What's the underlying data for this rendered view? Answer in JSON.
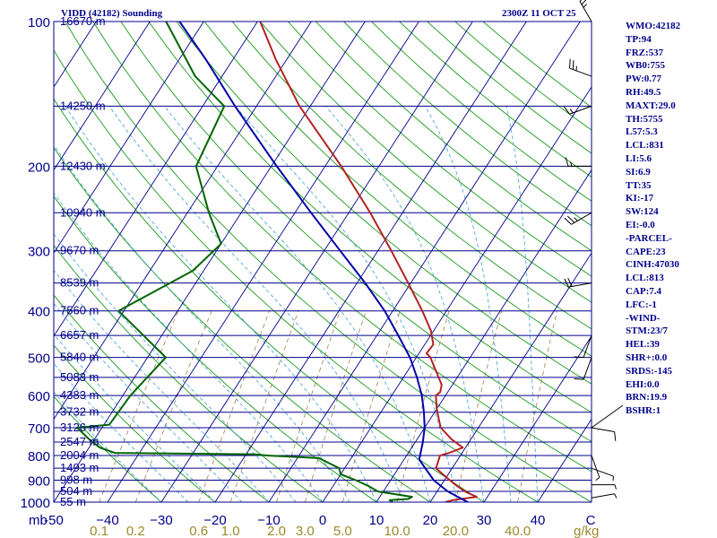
{
  "header": {
    "station": "VIDD (42182) Sounding",
    "datetime": "2300Z 11 OCT 25"
  },
  "sidebar": [
    "WMO:42182",
    "TP:94",
    "FRZ:537",
    "WB0:755",
    "PW:0.77",
    "RH:49.5",
    "MAXT:29.0",
    "TH:5755",
    "L57:5.3",
    "LCL:831",
    "LI:5.6",
    "SI:6.9",
    "TT:35",
    "KI:-17",
    "SW:124",
    "EI:-0.0",
    "-PARCEL-",
    "CAPE:23",
    "CINH:47030",
    "LCL:813",
    "CAP:7.4",
    "LFC:-1",
    "-WIND-",
    "STM:23/7",
    "HEL:39",
    "SHR+:0.0",
    "SRDS:-145",
    "EHI:0.0",
    "BRN:19.9",
    "BSHR:1"
  ],
  "colors": {
    "isobar": "#00008b",
    "isotherm": "#00008b",
    "dry_adiabat": "#1a9a1a",
    "moist_adiabat": "#3ca0d0",
    "mixing_ratio": "#a08050",
    "temperature": "#b22222",
    "dewpoint": "#006400",
    "parcel": "#0000aa",
    "text": "#00008b"
  },
  "chart_data": {
    "type": "line",
    "title": "VIDD (42182) Sounding",
    "subtitle": "2300Z 11 OCT 25",
    "xlabel": "°C",
    "ylabel": "mb",
    "xlim": [
      -50,
      50
    ],
    "ylim": [
      1000,
      100
    ],
    "pressure_ticks": [
      100,
      200,
      300,
      400,
      500,
      600,
      700,
      800,
      900,
      1000
    ],
    "pressure_tick_labels": [
      "100",
      "200",
      "300",
      "400",
      "500",
      "600",
      "700",
      "800",
      "900",
      "1000"
    ],
    "temp_ticks": [
      -50,
      -40,
      -30,
      -20,
      -10,
      0,
      10,
      20,
      30,
      40,
      50
    ],
    "temp_tick_labels": [
      "-50",
      "−40",
      "−30",
      "−20",
      "−10",
      "0",
      "10",
      "20",
      "30",
      "40",
      "C"
    ],
    "mb_label": "mb",
    "mixing_ratio_labels": [
      "0.1",
      "0.2",
      "0.6",
      "1.0",
      "2.0",
      "3.0",
      "5.0",
      "10.0",
      "20.0",
      "40.0"
    ],
    "mixing_ratio_values": [
      0.1,
      0.2,
      0.6,
      1.0,
      2.0,
      3.0,
      5.0,
      10.0,
      20.0,
      40.0
    ],
    "mixing_ratio_unit": "g/kg",
    "height_levels": [
      {
        "p": 100,
        "label": "16670 m"
      },
      {
        "p": 150,
        "label": "14250 m"
      },
      {
        "p": 200,
        "label": "12430 m"
      },
      {
        "p": 250,
        "label": "10940 m"
      },
      {
        "p": 300,
        "label": "9670 m"
      },
      {
        "p": 350,
        "label": "8539 m"
      },
      {
        "p": 400,
        "label": "7560 m"
      },
      {
        "p": 450,
        "label": "6657 m"
      },
      {
        "p": 500,
        "label": "5840 m"
      },
      {
        "p": 550,
        "label": "5083 m"
      },
      {
        "p": 600,
        "label": "4383 m"
      },
      {
        "p": 650,
        "label": "3732 m"
      },
      {
        "p": 700,
        "label": "3126 m"
      },
      {
        "p": 750,
        "label": "2547 m"
      },
      {
        "p": 800,
        "label": "2004 m"
      },
      {
        "p": 850,
        "label": "1493 m"
      },
      {
        "p": 900,
        "label": "998 m"
      },
      {
        "p": 950,
        "label": "504 m"
      },
      {
        "p": 1000,
        "label": "55 m"
      }
    ],
    "series": [
      {
        "name": "Temperature",
        "points": [
          [
            1000,
            22.8
          ],
          [
            990,
            24.0
          ],
          [
            975,
            28.0
          ],
          [
            962,
            26.5
          ],
          [
            950,
            25.2
          ],
          [
            925,
            23.0
          ],
          [
            900,
            21.0
          ],
          [
            875,
            19.0
          ],
          [
            850,
            17.0
          ],
          [
            800,
            16.2
          ],
          [
            790,
            17.6
          ],
          [
            770,
            19.5
          ],
          [
            740,
            16.4
          ],
          [
            700,
            13.0
          ],
          [
            680,
            12.0
          ],
          [
            640,
            10.0
          ],
          [
            600,
            8.2
          ],
          [
            590,
            8.6
          ],
          [
            570,
            8.0
          ],
          [
            500,
            2.6
          ],
          [
            490,
            1.4
          ],
          [
            470,
            1.6
          ],
          [
            440,
            -0.5
          ],
          [
            400,
            -4.5
          ],
          [
            350,
            -10.5
          ],
          [
            300,
            -17.5
          ],
          [
            250,
            -26.0
          ],
          [
            200,
            -37.0
          ],
          [
            150,
            -52.0
          ],
          [
            120,
            -62.0
          ],
          [
            100,
            -69.5
          ]
        ]
      },
      {
        "name": "Dewpoint",
        "points": [
          [
            1000,
            13.0
          ],
          [
            990,
            12.2
          ],
          [
            985,
            15.5
          ],
          [
            975,
            16.0
          ],
          [
            950,
            9.0
          ],
          [
            925,
            6.5
          ],
          [
            900,
            3.5
          ],
          [
            875,
            0.0
          ],
          [
            850,
            -1.0
          ],
          [
            810,
            -6.0
          ],
          [
            800,
            -15.6
          ],
          [
            795,
            -18.6
          ],
          [
            790,
            -44.6
          ],
          [
            770,
            -48.0
          ],
          [
            740,
            -51.0
          ],
          [
            700,
            -54.6
          ],
          [
            690,
            -49.0
          ],
          [
            600,
            -48.6
          ],
          [
            500,
            -46.6
          ],
          [
            400,
            -61.0
          ],
          [
            330,
            -52.0
          ],
          [
            290,
            -50.0
          ],
          [
            250,
            -56.0
          ],
          [
            200,
            -64.0
          ],
          [
            150,
            -66.0
          ],
          [
            130,
            -75.0
          ],
          [
            100,
            -87.0
          ]
        ]
      },
      {
        "name": "Parcel",
        "points": [
          [
            1000,
            27.0
          ],
          [
            975,
            24.5
          ],
          [
            950,
            22.0
          ],
          [
            925,
            20.0
          ],
          [
            900,
            18.0
          ],
          [
            850,
            15.0
          ],
          [
            815,
            12.8
          ],
          [
            800,
            12.5
          ],
          [
            750,
            11.4
          ],
          [
            700,
            10.0
          ],
          [
            650,
            8.0
          ],
          [
            600,
            5.6
          ],
          [
            550,
            2.5
          ],
          [
            500,
            -1.2
          ],
          [
            450,
            -6.0
          ],
          [
            400,
            -11.5
          ],
          [
            350,
            -18.5
          ],
          [
            300,
            -27.0
          ],
          [
            250,
            -37.0
          ],
          [
            200,
            -49.0
          ],
          [
            150,
            -64.0
          ],
          [
            120,
            -75.0
          ],
          [
            100,
            -84.5
          ]
        ]
      }
    ],
    "wind_barbs": [
      {
        "p": 100,
        "dir": 330,
        "speed": 25
      },
      {
        "p": 130,
        "dir": 290,
        "speed": 25
      },
      {
        "p": 150,
        "dir": 250,
        "speed": 15
      },
      {
        "p": 200,
        "dir": 270,
        "speed": 15
      },
      {
        "p": 250,
        "dir": 240,
        "speed": 25
      },
      {
        "p": 350,
        "dir": 260,
        "speed": 20
      },
      {
        "p": 450,
        "dir": 200,
        "speed": 10
      },
      {
        "p": 500,
        "dir": 200,
        "speed": 10
      },
      {
        "p": 700,
        "dir": 100,
        "speed": 10
      },
      {
        "p": 800,
        "dir": 160,
        "speed": 5
      },
      {
        "p": 850,
        "dir": 110,
        "speed": 5
      },
      {
        "p": 920,
        "dir": 90,
        "speed": 5
      },
      {
        "p": 980,
        "dir": 80,
        "speed": 5
      }
    ]
  }
}
